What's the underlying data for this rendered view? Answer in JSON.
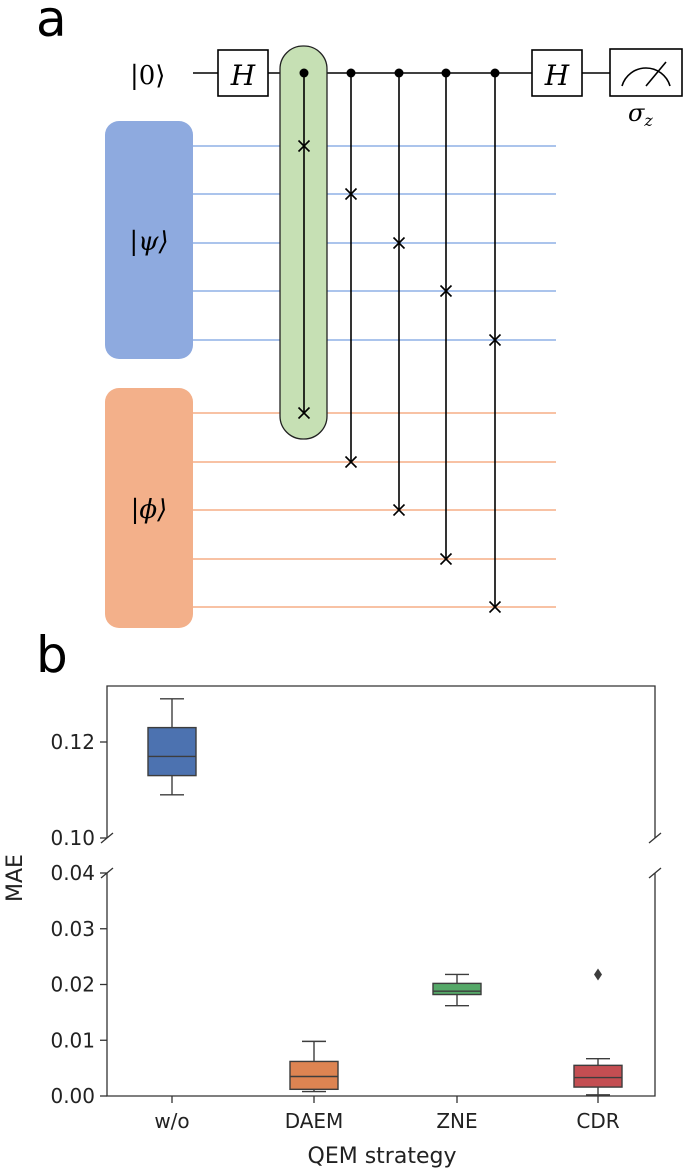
{
  "panel_a": {
    "label": "a",
    "ancilla_label": "|0⟩",
    "gate_h": "H",
    "measure_label": "σz",
    "register_psi": "|ψ⟩",
    "register_phi": "|ϕ⟩",
    "colors": {
      "psi": "#8eaadf",
      "psi_wire": "#8fb0e6",
      "phi": "#f3b08a",
      "phi_wire": "#f5ad86",
      "highlight": "#c6e0b4"
    }
  },
  "panel_b": {
    "label": "b"
  },
  "chart_data": {
    "type": "box",
    "xlabel": "QEM strategy",
    "ylabel": "MAE",
    "categories": [
      "w/o",
      "DAEM",
      "ZNE",
      "CDR"
    ],
    "broken_axis": true,
    "upper_ylim": [
      0.1,
      0.13
    ],
    "lower_ylim": [
      0.0,
      0.04
    ],
    "upper_ticks": [
      "0.10",
      "0.12"
    ],
    "lower_ticks": [
      "0.00",
      "0.01",
      "0.02",
      "0.03",
      "0.04"
    ],
    "boxes": [
      {
        "category": "w/o",
        "color": "#4c72b0",
        "whislo": 0.109,
        "q1": 0.113,
        "med": 0.117,
        "q3": 0.123,
        "whishi": 0.129,
        "fliers": [],
        "panel": "upper"
      },
      {
        "category": "DAEM",
        "color": "#dd8452",
        "whislo": 0.0008,
        "q1": 0.0012,
        "med": 0.0035,
        "q3": 0.0062,
        "whishi": 0.0098,
        "fliers": [],
        "panel": "lower"
      },
      {
        "category": "ZNE",
        "color": "#55a868",
        "whislo": 0.0162,
        "q1": 0.0182,
        "med": 0.0188,
        "q3": 0.0202,
        "whishi": 0.0218,
        "fliers": [],
        "panel": "lower"
      },
      {
        "category": "CDR",
        "color": "#c44e52",
        "whislo": 0.0002,
        "q1": 0.0016,
        "med": 0.0033,
        "q3": 0.0055,
        "whishi": 0.0067,
        "fliers": [
          0.0218
        ],
        "panel": "lower"
      }
    ],
    "grid": false
  }
}
